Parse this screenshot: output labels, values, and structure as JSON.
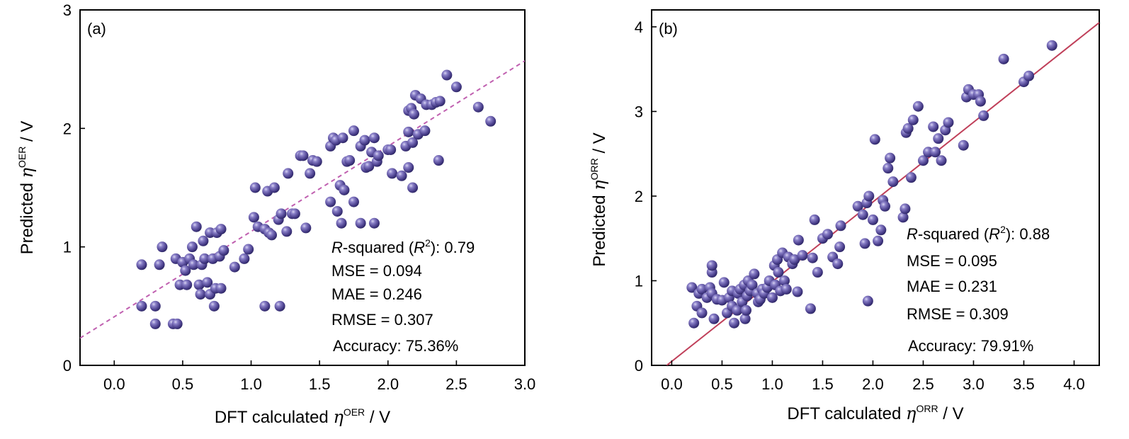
{
  "colors": {
    "point": "#5a4f99",
    "point_highlight": "#b8b2e0",
    "fit_a": "#c060b0",
    "fit_b": "#c0405a"
  },
  "chart_data": [
    {
      "type": "scatter",
      "panel_label": "(a)",
      "xlabel": {
        "prefix": "DFT calculated ",
        "symbol": "η",
        "superscript": "OER",
        "suffix": " / V"
      },
      "ylabel": {
        "prefix": "Predicted ",
        "symbol": "η",
        "superscript": "OER",
        "suffix": " / V"
      },
      "xlim": [
        -0.25,
        3.0
      ],
      "ylim": [
        0,
        3
      ],
      "xticks": [
        "0.0",
        "0.5",
        "1.0",
        "1.5",
        "2.0",
        "2.5",
        "3.0"
      ],
      "yticks": [
        "0",
        "1",
        "2",
        "3"
      ],
      "fit_line": {
        "style": "dashed",
        "points": [
          [
            -0.25,
            0.23
          ],
          [
            3.0,
            2.57
          ]
        ]
      },
      "metrics": {
        "r2_italic": "R",
        "r2_mid": "-squared (",
        "r2_italic2": "R",
        "r2_sup": "2",
        "r2_end": "): 0.79",
        "mse": "MSE = 0.094",
        "mae": "MAE = 0.246",
        "rmse": "RMSE = 0.307",
        "accuracy": "Accuracy: 75.36%"
      },
      "points": [
        [
          0.2,
          0.85
        ],
        [
          0.2,
          0.5
        ],
        [
          0.3,
          0.5
        ],
        [
          0.3,
          0.35
        ],
        [
          0.33,
          0.85
        ],
        [
          0.35,
          1.0
        ],
        [
          0.43,
          0.35
        ],
        [
          0.46,
          0.35
        ],
        [
          0.45,
          0.9
        ],
        [
          0.48,
          0.68
        ],
        [
          0.5,
          0.87
        ],
        [
          0.52,
          0.8
        ],
        [
          0.53,
          0.68
        ],
        [
          0.55,
          0.9
        ],
        [
          0.57,
          1.0
        ],
        [
          0.58,
          0.85
        ],
        [
          0.6,
          1.17
        ],
        [
          0.62,
          0.68
        ],
        [
          0.63,
          0.6
        ],
        [
          0.64,
          0.85
        ],
        [
          0.65,
          1.05
        ],
        [
          0.66,
          0.9
        ],
        [
          0.68,
          0.7
        ],
        [
          0.7,
          0.6
        ],
        [
          0.7,
          1.12
        ],
        [
          0.72,
          0.9
        ],
        [
          0.73,
          0.5
        ],
        [
          0.74,
          0.65
        ],
        [
          0.75,
          1.12
        ],
        [
          0.77,
          0.92
        ],
        [
          0.78,
          0.65
        ],
        [
          0.78,
          1.15
        ],
        [
          0.8,
          0.97
        ],
        [
          0.88,
          0.83
        ],
        [
          0.95,
          0.9
        ],
        [
          0.98,
          0.98
        ],
        [
          1.02,
          1.25
        ],
        [
          1.03,
          1.5
        ],
        [
          1.05,
          1.17
        ],
        [
          1.1,
          1.15
        ],
        [
          1.1,
          0.5
        ],
        [
          1.12,
          1.47
        ],
        [
          1.13,
          1.12
        ],
        [
          1.15,
          1.1
        ],
        [
          1.17,
          1.5
        ],
        [
          1.2,
          1.23
        ],
        [
          1.21,
          0.5
        ],
        [
          1.22,
          1.28
        ],
        [
          1.26,
          1.13
        ],
        [
          1.27,
          1.62
        ],
        [
          1.3,
          1.28
        ],
        [
          1.32,
          1.28
        ],
        [
          1.36,
          1.77
        ],
        [
          1.38,
          1.77
        ],
        [
          1.4,
          1.16
        ],
        [
          1.43,
          1.62
        ],
        [
          1.45,
          1.73
        ],
        [
          1.48,
          1.72
        ],
        [
          1.58,
          1.38
        ],
        [
          1.58,
          1.85
        ],
        [
          1.6,
          1.92
        ],
        [
          1.62,
          1.9
        ],
        [
          1.63,
          1.3
        ],
        [
          1.65,
          1.52
        ],
        [
          1.66,
          1.2
        ],
        [
          1.67,
          1.92
        ],
        [
          1.68,
          1.48
        ],
        [
          1.7,
          1.72
        ],
        [
          1.72,
          1.73
        ],
        [
          1.75,
          1.38
        ],
        [
          1.75,
          1.98
        ],
        [
          1.8,
          1.2
        ],
        [
          1.8,
          1.85
        ],
        [
          1.83,
          1.9
        ],
        [
          1.84,
          1.67
        ],
        [
          1.86,
          1.68
        ],
        [
          1.88,
          1.8
        ],
        [
          1.9,
          1.2
        ],
        [
          1.9,
          1.92
        ],
        [
          1.92,
          1.72
        ],
        [
          1.93,
          1.77
        ],
        [
          2.0,
          1.82
        ],
        [
          2.02,
          1.82
        ],
        [
          2.03,
          1.62
        ],
        [
          2.1,
          1.6
        ],
        [
          2.13,
          1.85
        ],
        [
          2.15,
          1.67
        ],
        [
          2.15,
          1.97
        ],
        [
          2.15,
          2.15
        ],
        [
          2.17,
          2.17
        ],
        [
          2.18,
          1.5
        ],
        [
          2.18,
          1.88
        ],
        [
          2.19,
          2.12
        ],
        [
          2.2,
          2.28
        ],
        [
          2.22,
          1.95
        ],
        [
          2.24,
          2.25
        ],
        [
          2.27,
          1.98
        ],
        [
          2.28,
          2.2
        ],
        [
          2.32,
          2.2
        ],
        [
          2.35,
          2.22
        ],
        [
          2.37,
          1.73
        ],
        [
          2.38,
          2.23
        ],
        [
          2.43,
          2.45
        ],
        [
          2.5,
          2.35
        ],
        [
          2.66,
          2.18
        ],
        [
          2.75,
          2.06
        ]
      ]
    },
    {
      "type": "scatter",
      "panel_label": "(b)",
      "xlabel": {
        "prefix": "DFT calculated ",
        "symbol": "η",
        "superscript": "ORR",
        "suffix": " / V"
      },
      "ylabel": {
        "prefix": "Predicted ",
        "symbol": "η",
        "superscript": "ORR",
        "suffix": " / V"
      },
      "xlim": [
        -0.2,
        4.25
      ],
      "ylim": [
        0,
        4.2
      ],
      "xticks": [
        "0.0",
        "0.5",
        "1.0",
        "1.5",
        "2.0",
        "2.5",
        "3.0",
        "3.5",
        "4.0"
      ],
      "yticks": [
        "0",
        "1",
        "2",
        "3",
        "4"
      ],
      "fit_line": {
        "style": "solid",
        "points": [
          [
            -0.05,
            0.0
          ],
          [
            4.25,
            4.05
          ]
        ]
      },
      "metrics": {
        "r2_italic": "R",
        "r2_mid": "-squared (",
        "r2_italic2": "R",
        "r2_sup": "2",
        "r2_end": "): 0.88",
        "mse": "MSE = 0.095",
        "mae": "MAE = 0.231",
        "rmse": "RMSE = 0.309",
        "accuracy": "Accuracy: 79.91%"
      },
      "points": [
        [
          0.2,
          0.92
        ],
        [
          0.22,
          0.5
        ],
        [
          0.25,
          0.7
        ],
        [
          0.27,
          0.85
        ],
        [
          0.3,
          0.62
        ],
        [
          0.3,
          0.9
        ],
        [
          0.35,
          0.8
        ],
        [
          0.38,
          0.92
        ],
        [
          0.4,
          0.85
        ],
        [
          0.4,
          1.1
        ],
        [
          0.4,
          1.18
        ],
        [
          0.42,
          0.55
        ],
        [
          0.45,
          0.78
        ],
        [
          0.5,
          0.77
        ],
        [
          0.52,
          0.98
        ],
        [
          0.55,
          0.62
        ],
        [
          0.57,
          0.8
        ],
        [
          0.6,
          0.7
        ],
        [
          0.6,
          0.88
        ],
        [
          0.62,
          0.5
        ],
        [
          0.65,
          0.65
        ],
        [
          0.66,
          0.85
        ],
        [
          0.68,
          0.9
        ],
        [
          0.7,
          0.75
        ],
        [
          0.72,
          0.95
        ],
        [
          0.73,
          0.55
        ],
        [
          0.74,
          0.65
        ],
        [
          0.75,
          0.82
        ],
        [
          0.76,
          1.0
        ],
        [
          0.78,
          0.88
        ],
        [
          0.8,
          0.95
        ],
        [
          0.82,
          1.08
        ],
        [
          0.85,
          0.85
        ],
        [
          0.86,
          0.75
        ],
        [
          0.88,
          0.78
        ],
        [
          0.9,
          0.9
        ],
        [
          0.92,
          0.85
        ],
        [
          0.95,
          0.92
        ],
        [
          0.97,
          1.0
        ],
        [
          1.0,
          0.8
        ],
        [
          1.02,
          1.18
        ],
        [
          1.03,
          0.95
        ],
        [
          1.05,
          1.25
        ],
        [
          1.06,
          1.1
        ],
        [
          1.08,
          0.88
        ],
        [
          1.1,
          1.33
        ],
        [
          1.12,
          1.0
        ],
        [
          1.14,
          0.9
        ],
        [
          1.16,
          1.28
        ],
        [
          1.2,
          1.2
        ],
        [
          1.22,
          1.25
        ],
        [
          1.25,
          0.87
        ],
        [
          1.26,
          1.48
        ],
        [
          1.3,
          1.3
        ],
        [
          1.38,
          0.67
        ],
        [
          1.4,
          1.27
        ],
        [
          1.42,
          1.72
        ],
        [
          1.45,
          1.1
        ],
        [
          1.5,
          1.5
        ],
        [
          1.55,
          1.55
        ],
        [
          1.6,
          1.28
        ],
        [
          1.65,
          1.2
        ],
        [
          1.67,
          1.4
        ],
        [
          1.68,
          1.65
        ],
        [
          1.85,
          1.88
        ],
        [
          1.9,
          1.78
        ],
        [
          1.92,
          1.44
        ],
        [
          1.94,
          1.92
        ],
        [
          1.95,
          0.76
        ],
        [
          1.96,
          2.0
        ],
        [
          2.0,
          1.72
        ],
        [
          2.02,
          2.67
        ],
        [
          2.05,
          1.47
        ],
        [
          2.08,
          1.6
        ],
        [
          2.1,
          1.95
        ],
        [
          2.12,
          1.88
        ],
        [
          2.15,
          2.33
        ],
        [
          2.17,
          2.45
        ],
        [
          2.2,
          2.17
        ],
        [
          2.3,
          1.75
        ],
        [
          2.32,
          1.85
        ],
        [
          2.33,
          2.75
        ],
        [
          2.35,
          2.8
        ],
        [
          2.38,
          2.22
        ],
        [
          2.4,
          2.9
        ],
        [
          2.45,
          3.06
        ],
        [
          2.5,
          2.42
        ],
        [
          2.55,
          2.52
        ],
        [
          2.6,
          2.82
        ],
        [
          2.62,
          2.52
        ],
        [
          2.65,
          2.68
        ],
        [
          2.68,
          2.42
        ],
        [
          2.72,
          2.78
        ],
        [
          2.75,
          2.87
        ],
        [
          2.9,
          2.6
        ],
        [
          2.93,
          3.17
        ],
        [
          2.95,
          3.26
        ],
        [
          3.0,
          3.2
        ],
        [
          3.05,
          3.2
        ],
        [
          3.07,
          3.12
        ],
        [
          3.1,
          2.95
        ],
        [
          3.3,
          3.62
        ],
        [
          3.5,
          3.35
        ],
        [
          3.55,
          3.42
        ],
        [
          3.78,
          3.78
        ]
      ]
    }
  ]
}
